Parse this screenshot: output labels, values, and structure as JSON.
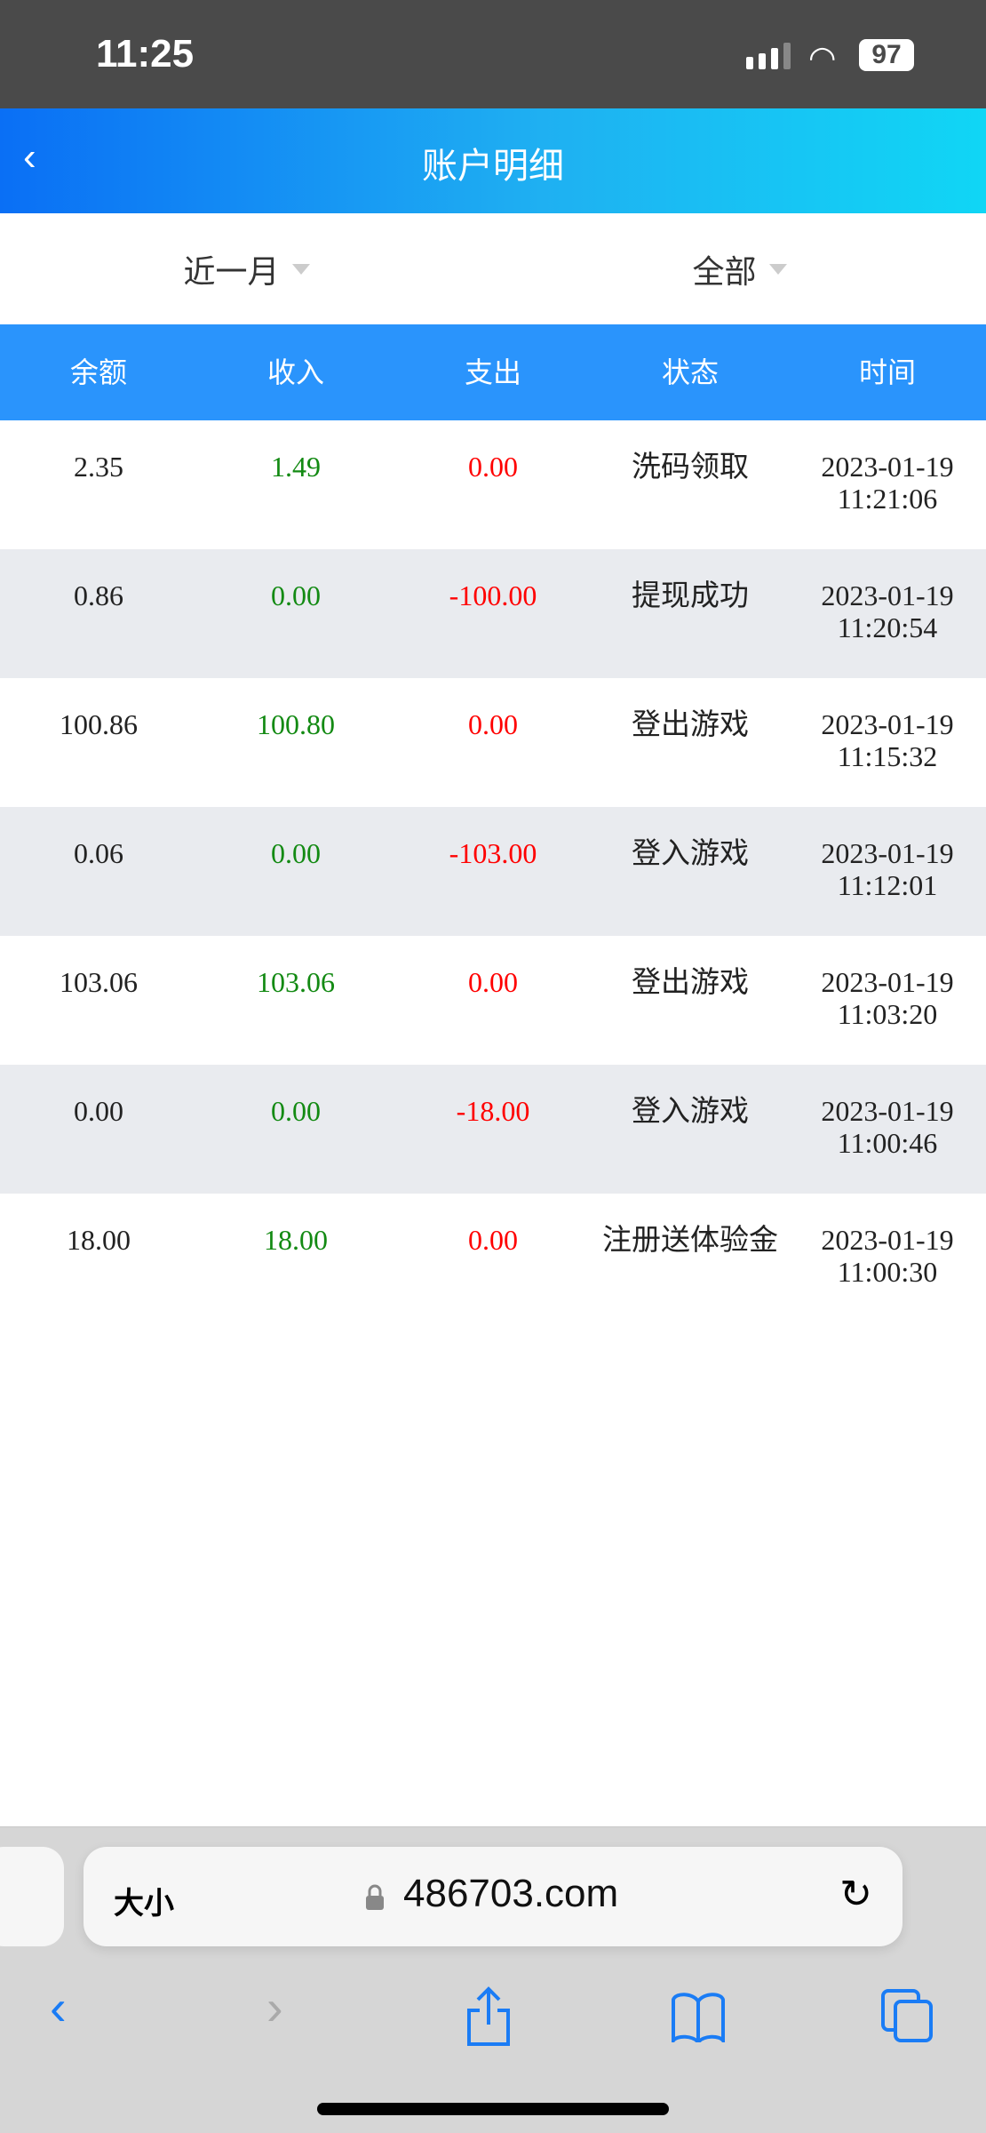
{
  "status_bar": {
    "time": "11:25",
    "battery": "97"
  },
  "header": {
    "title": "账户明细"
  },
  "filters": {
    "period": "近一月",
    "type": "全部"
  },
  "table": {
    "columns": [
      "余额",
      "收入",
      "支出",
      "状态",
      "时间"
    ],
    "rows": [
      {
        "balance": "2.35",
        "income": "1.49",
        "expense": "0.00",
        "status": "洗码领取",
        "date": "2023-01-19",
        "time": "11:21:06"
      },
      {
        "balance": "0.86",
        "income": "0.00",
        "expense": "-100.00",
        "status": "提现成功",
        "date": "2023-01-19",
        "time": "11:20:54"
      },
      {
        "balance": "100.86",
        "income": "100.80",
        "expense": "0.00",
        "status": "登出游戏",
        "date": "2023-01-19",
        "time": "11:15:32"
      },
      {
        "balance": "0.06",
        "income": "0.00",
        "expense": "-103.00",
        "status": "登入游戏",
        "date": "2023-01-19",
        "time": "11:12:01"
      },
      {
        "balance": "103.06",
        "income": "103.06",
        "expense": "0.00",
        "status": "登出游戏",
        "date": "2023-01-19",
        "time": "11:03:20"
      },
      {
        "balance": "0.00",
        "income": "0.00",
        "expense": "-18.00",
        "status": "登入游戏",
        "date": "2023-01-19",
        "time": "11:00:46"
      },
      {
        "balance": "18.00",
        "income": "18.00",
        "expense": "0.00",
        "status": "注册送体验金",
        "date": "2023-01-19",
        "time": "11:00:30"
      }
    ]
  },
  "browser": {
    "text_size": "大小",
    "domain": "486703.com"
  },
  "colors": {
    "header_start": "#0a6ff5",
    "header_end": "#10d6f5",
    "table_header": "#2a94fc",
    "income": "#138a13",
    "expense": "#ff0000"
  }
}
